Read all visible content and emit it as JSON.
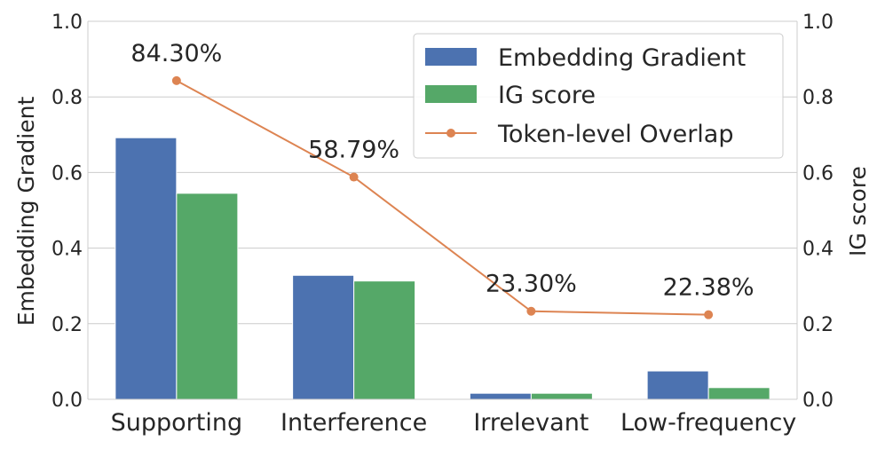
{
  "chart_data": {
    "type": "bar",
    "categories": [
      "Supporting",
      "Interference",
      "Irrelevant",
      "Low-frequency"
    ],
    "series": [
      {
        "name": "Embedding Gradient",
        "values": [
          0.692,
          0.328,
          0.016,
          0.075
        ],
        "axis": "left",
        "color": "#4c72b0",
        "kind": "bar"
      },
      {
        "name": "IG score",
        "values": [
          0.545,
          0.313,
          0.016,
          0.031
        ],
        "axis": "right",
        "color": "#55a868",
        "kind": "bar"
      },
      {
        "name": "Token-level Overlap",
        "values": [
          0.843,
          0.5879,
          0.233,
          0.2238
        ],
        "axis": "right",
        "color": "#dd8452",
        "kind": "line",
        "labels": [
          "84.30%",
          "58.79%",
          "23.30%",
          "22.38%"
        ]
      }
    ],
    "ylabel_left": "Embedding Gradient",
    "ylabel_right": "IG score",
    "ylim": [
      0,
      1.0
    ],
    "yticks": [
      0.0,
      0.2,
      0.4,
      0.6,
      0.8,
      1.0
    ],
    "ytick_labels": [
      "0.0",
      "0.2",
      "0.4",
      "0.6",
      "0.8",
      "1.0"
    ],
    "grid": "horizontal",
    "legend_position": "top-right"
  }
}
